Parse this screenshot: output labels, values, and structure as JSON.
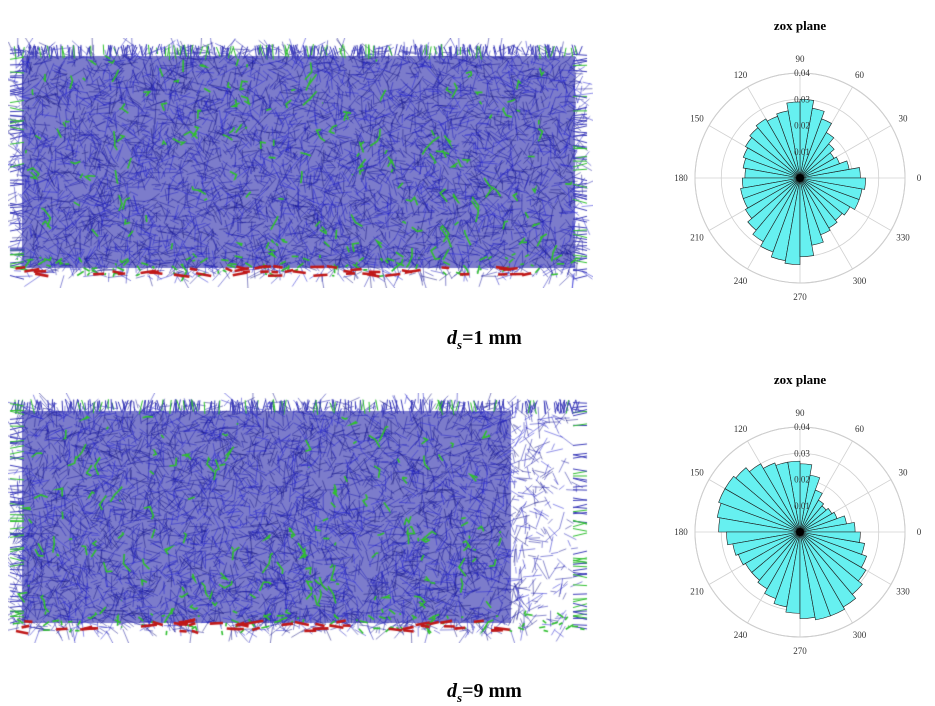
{
  "chart_data": [
    {
      "type": "network",
      "id": "fracture-network-1",
      "colors": {
        "background_mesh": "#1a1aaa",
        "fractures": "#2fbf2f",
        "boundary": "#c01818"
      }
    },
    {
      "type": "polar-histogram",
      "id": "rose-1",
      "title": "zox plane",
      "angle_ticks": [
        "0",
        "30",
        "60",
        "90",
        "120",
        "150",
        "180",
        "210",
        "240",
        "270",
        "300",
        "330"
      ],
      "radial_ticks": [
        "0.01",
        "0.02",
        "0.03",
        "0.04"
      ],
      "rlim": [
        0,
        0.04
      ],
      "bin_width_deg": 10,
      "bin_centers_deg": [
        5,
        15,
        25,
        35,
        45,
        55,
        65,
        75,
        85,
        95,
        105,
        115,
        125,
        135,
        145,
        155,
        165,
        175,
        185,
        195,
        205,
        215,
        225,
        235,
        245,
        255,
        265,
        275,
        285,
        295,
        305,
        315,
        325,
        335,
        345,
        355
      ],
      "values": [
        0.023,
        0.019,
        0.016,
        0.015,
        0.017,
        0.02,
        0.024,
        0.027,
        0.03,
        0.029,
        0.026,
        0.025,
        0.026,
        0.025,
        0.024,
        0.023,
        0.022,
        0.021,
        0.022,
        0.023,
        0.023,
        0.024,
        0.026,
        0.028,
        0.03,
        0.032,
        0.033,
        0.03,
        0.026,
        0.023,
        0.022,
        0.021,
        0.022,
        0.024,
        0.024,
        0.025
      ],
      "colors": {
        "bar": "#66f0f0",
        "bar_edge": "#1a1a1a",
        "grid": "#d0d0d0"
      }
    },
    {
      "type": "network",
      "id": "fracture-network-2",
      "colors": {
        "background_mesh": "#1a1aaa",
        "fractures": "#2fbf2f",
        "boundary": "#c01818"
      }
    },
    {
      "type": "polar-histogram",
      "id": "rose-2",
      "title": "zox plane",
      "angle_ticks": [
        "0",
        "30",
        "60",
        "90",
        "120",
        "150",
        "180",
        "210",
        "240",
        "270",
        "300",
        "330"
      ],
      "radial_ticks": [
        "0.01",
        "0.02",
        "0.03",
        "0.04"
      ],
      "rlim": [
        0,
        0.04
      ],
      "bin_width_deg": 10,
      "bin_centers_deg": [
        5,
        15,
        25,
        35,
        45,
        55,
        65,
        75,
        85,
        95,
        105,
        115,
        125,
        135,
        145,
        155,
        165,
        175,
        185,
        195,
        205,
        215,
        225,
        235,
        245,
        255,
        265,
        275,
        285,
        295,
        305,
        315,
        325,
        335,
        345,
        355
      ],
      "values": [
        0.021,
        0.018,
        0.015,
        0.014,
        0.013,
        0.014,
        0.017,
        0.022,
        0.026,
        0.027,
        0.027,
        0.028,
        0.03,
        0.032,
        0.033,
        0.033,
        0.032,
        0.031,
        0.028,
        0.026,
        0.025,
        0.024,
        0.024,
        0.025,
        0.027,
        0.029,
        0.031,
        0.033,
        0.034,
        0.034,
        0.033,
        0.031,
        0.029,
        0.027,
        0.025,
        0.023
      ],
      "colors": {
        "bar": "#66f0f0",
        "bar_edge": "#1a1a1a",
        "grid": "#d0d0d0"
      }
    }
  ],
  "captions": {
    "top": {
      "symbol": "d",
      "subscript": "s",
      "value": "=1 mm"
    },
    "bottom": {
      "symbol": "d",
      "subscript": "s",
      "value": "=9 mm"
    }
  }
}
